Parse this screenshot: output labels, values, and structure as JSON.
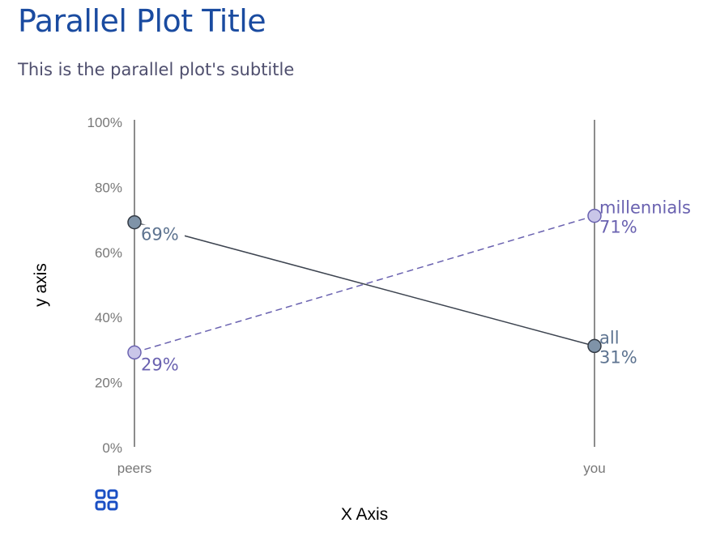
{
  "title": "Parallel Plot Title",
  "subtitle": "This is the parallel plot's subtitle",
  "icons": {
    "toolbar": "grid-icon"
  },
  "chart_data": {
    "type": "parallel",
    "title": "Parallel Plot Title",
    "subtitle": "This is the parallel plot's subtitle",
    "xlabel": "X Axis",
    "ylabel": "y axis",
    "categories": [
      "peers",
      "you"
    ],
    "ylim": [
      0,
      100
    ],
    "yticks": [
      "0%",
      "20%",
      "40%",
      "60%",
      "80%",
      "100%"
    ],
    "grid": false,
    "series": [
      {
        "name": "all",
        "values": [
          69,
          31
        ],
        "labels": [
          "69%",
          "31%"
        ],
        "color": "#3d4450",
        "marker_color": "#7f93a8",
        "label_color": "#5d7390",
        "dashed": false
      },
      {
        "name": "millennials",
        "values": [
          29,
          71
        ],
        "labels": [
          "29%",
          "71%"
        ],
        "color": "#6a62b0",
        "marker_color": "#c9c6e8",
        "label_color": "#6a62b0",
        "dashed": true
      }
    ]
  }
}
